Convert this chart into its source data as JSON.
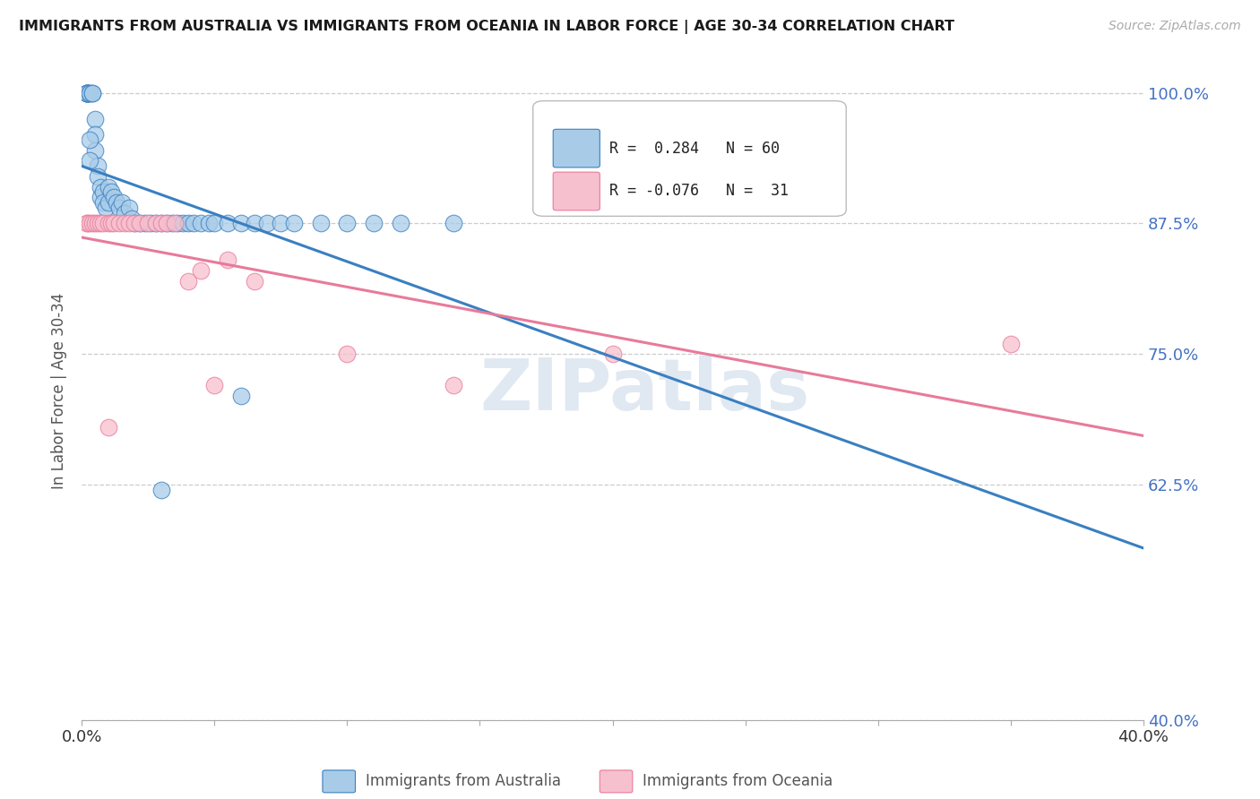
{
  "title": "IMMIGRANTS FROM AUSTRALIA VS IMMIGRANTS FROM OCEANIA IN LABOR FORCE | AGE 30-34 CORRELATION CHART",
  "source": "Source: ZipAtlas.com",
  "ylabel": "In Labor Force | Age 30-34",
  "xlim": [
    0.0,
    0.4
  ],
  "ylim": [
    0.4,
    1.03
  ],
  "ytick_labels": [
    "100.0%",
    "87.5%",
    "75.0%",
    "62.5%",
    "40.0%"
  ],
  "ytick_values": [
    1.0,
    0.875,
    0.75,
    0.625,
    0.4
  ],
  "xtick_labels": [
    "0.0%",
    "",
    "",
    "",
    "",
    "",
    "",
    "",
    "40.0%"
  ],
  "xtick_values": [
    0.0,
    0.05,
    0.1,
    0.15,
    0.2,
    0.25,
    0.3,
    0.35,
    0.4
  ],
  "blue_color": "#a8cce8",
  "pink_color": "#f7c0ce",
  "trendline_blue": "#3a7fc1",
  "trendline_pink": "#e87a9a",
  "legend_label_blue": "Immigrants from Australia",
  "legend_label_pink": "Immigrants from Oceania",
  "R_blue": 0.284,
  "N_blue": 60,
  "R_pink": -0.076,
  "N_pink": 31,
  "blue_x": [
    0.002,
    0.002,
    0.002,
    0.002,
    0.002,
    0.002,
    0.003,
    0.003,
    0.004,
    0.004,
    0.005,
    0.005,
    0.005,
    0.006,
    0.006,
    0.007,
    0.007,
    0.008,
    0.008,
    0.009,
    0.01,
    0.01,
    0.011,
    0.012,
    0.013,
    0.014,
    0.015,
    0.016,
    0.018,
    0.019,
    0.02,
    0.022,
    0.024,
    0.026,
    0.028,
    0.03,
    0.032,
    0.034,
    0.036,
    0.038,
    0.04,
    0.042,
    0.045,
    0.048,
    0.05,
    0.055,
    0.06,
    0.065,
    0.07,
    0.075,
    0.08,
    0.09,
    0.1,
    0.11,
    0.12,
    0.14,
    0.003,
    0.003,
    0.06,
    0.03
  ],
  "blue_y": [
    1.0,
    1.0,
    1.0,
    1.0,
    1.0,
    1.0,
    1.0,
    1.0,
    1.0,
    1.0,
    0.975,
    0.96,
    0.945,
    0.93,
    0.92,
    0.91,
    0.9,
    0.905,
    0.895,
    0.89,
    0.91,
    0.895,
    0.905,
    0.9,
    0.895,
    0.89,
    0.895,
    0.885,
    0.89,
    0.88,
    0.875,
    0.875,
    0.875,
    0.875,
    0.875,
    0.875,
    0.875,
    0.875,
    0.875,
    0.875,
    0.875,
    0.875,
    0.875,
    0.875,
    0.875,
    0.875,
    0.875,
    0.875,
    0.875,
    0.875,
    0.875,
    0.875,
    0.875,
    0.875,
    0.875,
    0.875,
    0.955,
    0.935,
    0.71,
    0.62
  ],
  "pink_x": [
    0.002,
    0.002,
    0.003,
    0.004,
    0.005,
    0.006,
    0.007,
    0.008,
    0.01,
    0.011,
    0.012,
    0.014,
    0.016,
    0.018,
    0.02,
    0.022,
    0.025,
    0.028,
    0.03,
    0.032,
    0.035,
    0.04,
    0.045,
    0.05,
    0.055,
    0.065,
    0.1,
    0.14,
    0.2,
    0.35,
    0.01
  ],
  "pink_y": [
    0.875,
    0.875,
    0.875,
    0.875,
    0.875,
    0.875,
    0.875,
    0.875,
    0.875,
    0.875,
    0.875,
    0.875,
    0.875,
    0.875,
    0.875,
    0.875,
    0.875,
    0.875,
    0.875,
    0.875,
    0.875,
    0.82,
    0.83,
    0.72,
    0.84,
    0.82,
    0.75,
    0.72,
    0.75,
    0.76,
    0.68
  ]
}
